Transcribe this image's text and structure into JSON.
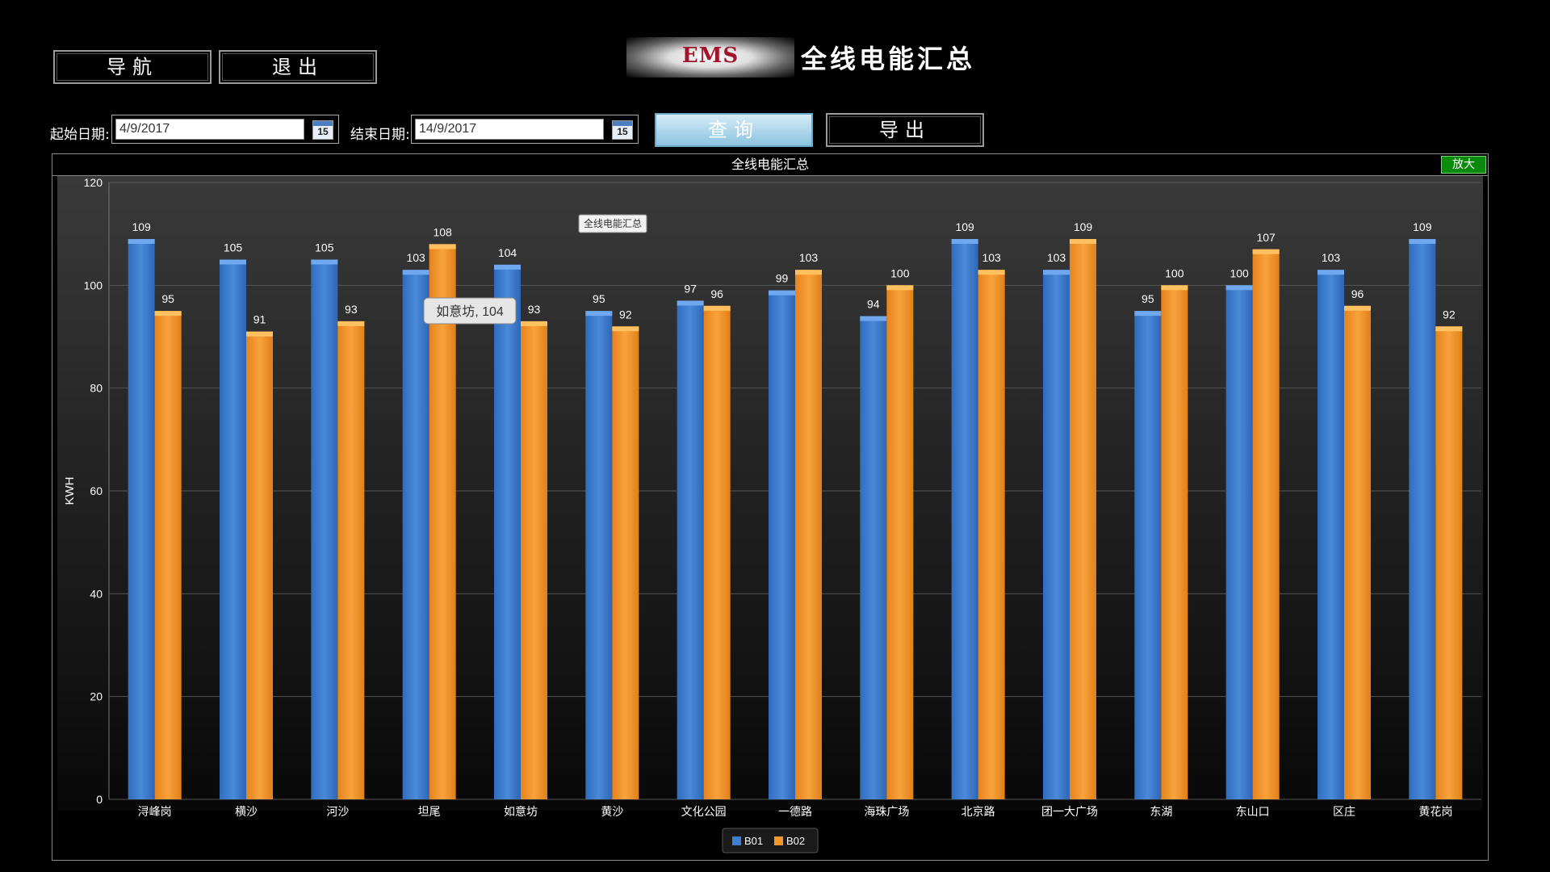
{
  "header": {
    "nav_label": "导航",
    "exit_label": "退出",
    "logo_text": "EMS",
    "title": "全线电能汇总"
  },
  "filters": {
    "start_label": "起始日期:",
    "start_value": "4/9/2017",
    "end_label": "结束日期:",
    "end_value": "14/9/2017",
    "calendar_day": "15",
    "query_label": "查询",
    "export_label": "导出"
  },
  "panel": {
    "title": "全线电能汇总",
    "zoom_label": "放大"
  },
  "chart_data": {
    "type": "bar",
    "title": "全线电能汇总",
    "ylabel": "KWH",
    "ylim": [
      0,
      120
    ],
    "yticks": [
      0,
      20,
      40,
      60,
      80,
      100,
      120
    ],
    "grid": true,
    "legend_position": "bottom",
    "categories": [
      "浔峰岗",
      "横沙",
      "河沙",
      "坦尾",
      "如意坊",
      "黄沙",
      "文化公园",
      "一德路",
      "海珠广场",
      "北京路",
      "团一大广场",
      "东湖",
      "东山口",
      "区庄",
      "黄花岗"
    ],
    "series": [
      {
        "name": "B01",
        "color": "#3f7fd0",
        "values": [
          109,
          105,
          105,
          103,
          104,
          95,
          97,
          99,
          94,
          109,
          103,
          95,
          100,
          103,
          109
        ]
      },
      {
        "name": "B02",
        "color": "#f5962a",
        "values": [
          95,
          91,
          93,
          108,
          93,
          92,
          96,
          103,
          100,
          103,
          109,
          100,
          107,
          96,
          92
        ]
      }
    ],
    "tooltip": {
      "text": "如意坊, 104"
    }
  }
}
